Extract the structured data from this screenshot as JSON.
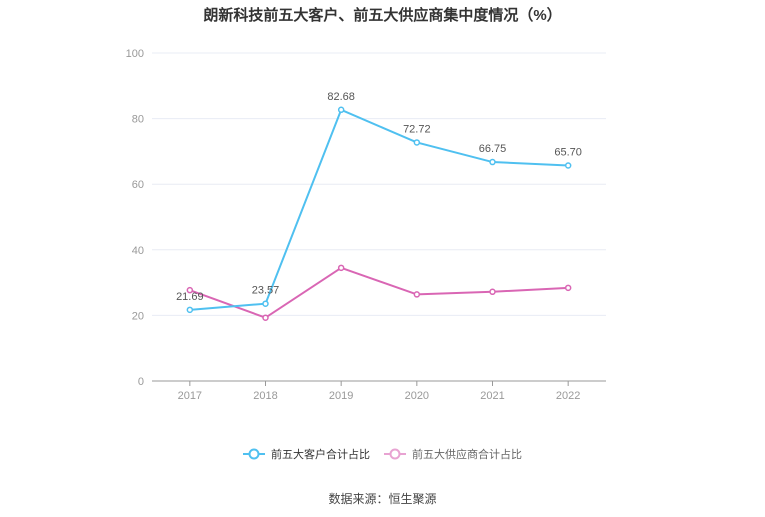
{
  "title": "朗新科技前五大客户、前五大供应商集中度情况（%）",
  "source": "数据来源：恒生聚源",
  "colors": {
    "customers": "#4fc0f0",
    "suppliers": "#d966b4",
    "grid": "#e8ecf4",
    "axis": "#999999",
    "label": "#999999"
  },
  "legend": [
    {
      "label": "前五大客户合计占比",
      "color": "#4fc0f0"
    },
    {
      "label": "前五大供应商合计占比",
      "color": "#e8a3d2"
    }
  ],
  "chart_data": {
    "type": "line",
    "title": "朗新科技前五大客户、前五大供应商集中度情况（%）",
    "xlabel": "",
    "ylabel": "",
    "categories": [
      "2017",
      "2018",
      "2019",
      "2020",
      "2021",
      "2022"
    ],
    "series": [
      {
        "name": "前五大客户合计占比",
        "values": [
          21.69,
          23.57,
          82.68,
          72.72,
          66.75,
          65.7
        ],
        "data_labels": [
          "21.69",
          "23.57",
          "82.68",
          "72.72",
          "66.75",
          "65.70"
        ]
      },
      {
        "name": "前五大供应商合计占比",
        "values": [
          27.7,
          19.3,
          34.5,
          26.4,
          27.2,
          28.4
        ]
      }
    ],
    "ylim": [
      0,
      100
    ],
    "yticks": [
      "0",
      "20",
      "40",
      "60",
      "80",
      "100"
    ],
    "grid": true,
    "legend_position": "bottom",
    "annotation": "数据来源：恒生聚源"
  }
}
